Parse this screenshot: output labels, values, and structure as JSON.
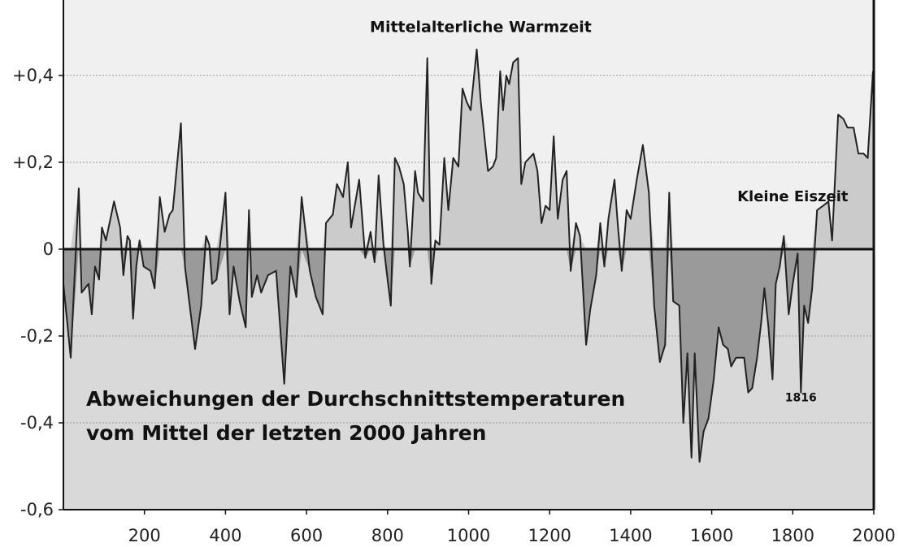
{
  "chart_data": {
    "type": "area",
    "title": "Abweichungen der Durchschnittstemperaturen",
    "subtitle": "vom Mittel der letzten 2000 Jahren",
    "xlabel": "",
    "ylabel": "",
    "xlim": [
      0,
      2000
    ],
    "ylim": [
      -0.6,
      0.6
    ],
    "grid": true,
    "x_ticks": [
      {
        "value": 200,
        "label": "200"
      },
      {
        "value": 400,
        "label": "400"
      },
      {
        "value": 600,
        "label": "600"
      },
      {
        "value": 800,
        "label": "800"
      },
      {
        "value": 1000,
        "label": "1000"
      },
      {
        "value": 1200,
        "label": "1200"
      },
      {
        "value": 1400,
        "label": "1400"
      },
      {
        "value": 1600,
        "label": "1600"
      },
      {
        "value": 1800,
        "label": "1800"
      },
      {
        "value": 2000,
        "label": "2000"
      }
    ],
    "y_ticks": [
      {
        "value": 0.4,
        "label": "+0,4"
      },
      {
        "value": 0.2,
        "label": "+0,2"
      },
      {
        "value": 0,
        "label": "0"
      },
      {
        "value": -0.2,
        "label": "-0,2"
      },
      {
        "value": -0.4,
        "label": "-0,4"
      },
      {
        "value": -0.6,
        "label": "-0,6"
      }
    ],
    "annotations": [
      {
        "text": "Mittelalterliche Warmzeit",
        "x": 1030,
        "y": 0.5
      },
      {
        "text": "Kleine Eiszeit",
        "x": 1800,
        "y": 0.11
      },
      {
        "text": "1816",
        "x": 1820,
        "y": -0.35
      }
    ],
    "colors": {
      "positive_fill": "#cbcbcb",
      "negative_fill": "#9a9a9a",
      "below_zero_background": "#d9d9d9",
      "above_zero_background": "#f0f0f0",
      "line": "#222222"
    },
    "series": [
      {
        "values": [
          [
            0,
            -0.08
          ],
          [
            18,
            -0.25
          ],
          [
            38,
            0.14
          ],
          [
            45,
            -0.1
          ],
          [
            62,
            -0.08
          ],
          [
            70,
            -0.15
          ],
          [
            78,
            -0.04
          ],
          [
            88,
            -0.07
          ],
          [
            95,
            0.05
          ],
          [
            105,
            0.02
          ],
          [
            125,
            0.11
          ],
          [
            140,
            0.05
          ],
          [
            148,
            -0.06
          ],
          [
            158,
            0.03
          ],
          [
            164,
            0.02
          ],
          [
            172,
            -0.16
          ],
          [
            180,
            -0.04
          ],
          [
            188,
            0.02
          ],
          [
            198,
            -0.04
          ],
          [
            215,
            -0.05
          ],
          [
            225,
            -0.09
          ],
          [
            238,
            0.12
          ],
          [
            250,
            0.04
          ],
          [
            262,
            0.08
          ],
          [
            270,
            0.09
          ],
          [
            280,
            0.19
          ],
          [
            290,
            0.29
          ],
          [
            300,
            -0.04
          ],
          [
            325,
            -0.23
          ],
          [
            340,
            -0.13
          ],
          [
            352,
            0.03
          ],
          [
            360,
            0.01
          ],
          [
            367,
            -0.08
          ],
          [
            378,
            -0.07
          ],
          [
            400,
            0.13
          ],
          [
            410,
            -0.15
          ],
          [
            420,
            -0.04
          ],
          [
            435,
            -0.12
          ],
          [
            450,
            -0.18
          ],
          [
            458,
            0.09
          ],
          [
            465,
            -0.11
          ],
          [
            478,
            -0.06
          ],
          [
            488,
            -0.1
          ],
          [
            505,
            -0.06
          ],
          [
            525,
            -0.05
          ],
          [
            545,
            -0.31
          ],
          [
            560,
            -0.04
          ],
          [
            575,
            -0.11
          ],
          [
            588,
            0.12
          ],
          [
            608,
            -0.05
          ],
          [
            623,
            -0.11
          ],
          [
            640,
            -0.15
          ],
          [
            648,
            0.06
          ],
          [
            665,
            0.08
          ],
          [
            675,
            0.15
          ],
          [
            690,
            0.12
          ],
          [
            702,
            0.2
          ],
          [
            710,
            0.05
          ],
          [
            730,
            0.16
          ],
          [
            745,
            -0.02
          ],
          [
            758,
            0.04
          ],
          [
            768,
            -0.03
          ],
          [
            778,
            0.17
          ],
          [
            790,
            0.01
          ],
          [
            800,
            -0.07
          ],
          [
            808,
            -0.13
          ],
          [
            818,
            0.21
          ],
          [
            828,
            0.19
          ],
          [
            840,
            0.15
          ],
          [
            850,
            0.04
          ],
          [
            855,
            -0.04
          ],
          [
            868,
            0.18
          ],
          [
            875,
            0.13
          ],
          [
            888,
            0.11
          ],
          [
            898,
            0.44
          ],
          [
            908,
            -0.08
          ],
          [
            918,
            0.02
          ],
          [
            928,
            0.01
          ],
          [
            940,
            0.21
          ],
          [
            950,
            0.09
          ],
          [
            962,
            0.21
          ],
          [
            975,
            0.19
          ],
          [
            985,
            0.37
          ],
          [
            995,
            0.34
          ],
          [
            1005,
            0.32
          ],
          [
            1020,
            0.46
          ],
          [
            1030,
            0.34
          ],
          [
            1048,
            0.18
          ],
          [
            1060,
            0.19
          ],
          [
            1068,
            0.21
          ],
          [
            1078,
            0.41
          ],
          [
            1085,
            0.32
          ],
          [
            1093,
            0.4
          ],
          [
            1100,
            0.38
          ],
          [
            1110,
            0.43
          ],
          [
            1122,
            0.44
          ],
          [
            1130,
            0.15
          ],
          [
            1140,
            0.2
          ],
          [
            1150,
            0.21
          ],
          [
            1160,
            0.22
          ],
          [
            1170,
            0.18
          ],
          [
            1180,
            0.06
          ],
          [
            1190,
            0.1
          ],
          [
            1200,
            0.09
          ],
          [
            1210,
            0.26
          ],
          [
            1220,
            0.07
          ],
          [
            1232,
            0.16
          ],
          [
            1242,
            0.18
          ],
          [
            1252,
            -0.05
          ],
          [
            1265,
            0.06
          ],
          [
            1275,
            0.03
          ],
          [
            1290,
            -0.22
          ],
          [
            1300,
            -0.14
          ],
          [
            1315,
            -0.06
          ],
          [
            1325,
            0.06
          ],
          [
            1335,
            -0.04
          ],
          [
            1345,
            0.07
          ],
          [
            1360,
            0.16
          ],
          [
            1368,
            0.06
          ],
          [
            1378,
            -0.05
          ],
          [
            1390,
            0.09
          ],
          [
            1400,
            0.07
          ],
          [
            1415,
            0.16
          ],
          [
            1430,
            0.24
          ],
          [
            1445,
            0.13
          ],
          [
            1458,
            -0.13
          ],
          [
            1472,
            -0.26
          ],
          [
            1485,
            -0.22
          ],
          [
            1495,
            0.13
          ],
          [
            1505,
            -0.12
          ],
          [
            1520,
            -0.13
          ],
          [
            1530,
            -0.4
          ],
          [
            1540,
            -0.24
          ],
          [
            1550,
            -0.48
          ],
          [
            1558,
            -0.24
          ],
          [
            1570,
            -0.49
          ],
          [
            1580,
            -0.42
          ],
          [
            1592,
            -0.39
          ],
          [
            1605,
            -0.3
          ],
          [
            1617,
            -0.18
          ],
          [
            1628,
            -0.22
          ],
          [
            1640,
            -0.23
          ],
          [
            1648,
            -0.27
          ],
          [
            1660,
            -0.25
          ],
          [
            1670,
            -0.25
          ],
          [
            1680,
            -0.25
          ],
          [
            1690,
            -0.33
          ],
          [
            1700,
            -0.32
          ],
          [
            1712,
            -0.25
          ],
          [
            1722,
            -0.17
          ],
          [
            1730,
            -0.09
          ],
          [
            1740,
            -0.18
          ],
          [
            1750,
            -0.3
          ],
          [
            1758,
            -0.08
          ],
          [
            1768,
            -0.04
          ],
          [
            1778,
            0.03
          ],
          [
            1790,
            -0.15
          ],
          [
            1800,
            -0.08
          ],
          [
            1812,
            -0.01
          ],
          [
            1820,
            -0.33
          ],
          [
            1828,
            -0.13
          ],
          [
            1838,
            -0.17
          ],
          [
            1848,
            -0.09
          ],
          [
            1860,
            0.09
          ],
          [
            1875,
            0.1
          ],
          [
            1888,
            0.11
          ],
          [
            1897,
            0.02
          ],
          [
            1912,
            0.31
          ],
          [
            1925,
            0.3
          ],
          [
            1935,
            0.28
          ],
          [
            1950,
            0.28
          ],
          [
            1962,
            0.22
          ],
          [
            1975,
            0.22
          ],
          [
            1985,
            0.21
          ],
          [
            1998,
            0.41
          ]
        ]
      }
    ]
  }
}
